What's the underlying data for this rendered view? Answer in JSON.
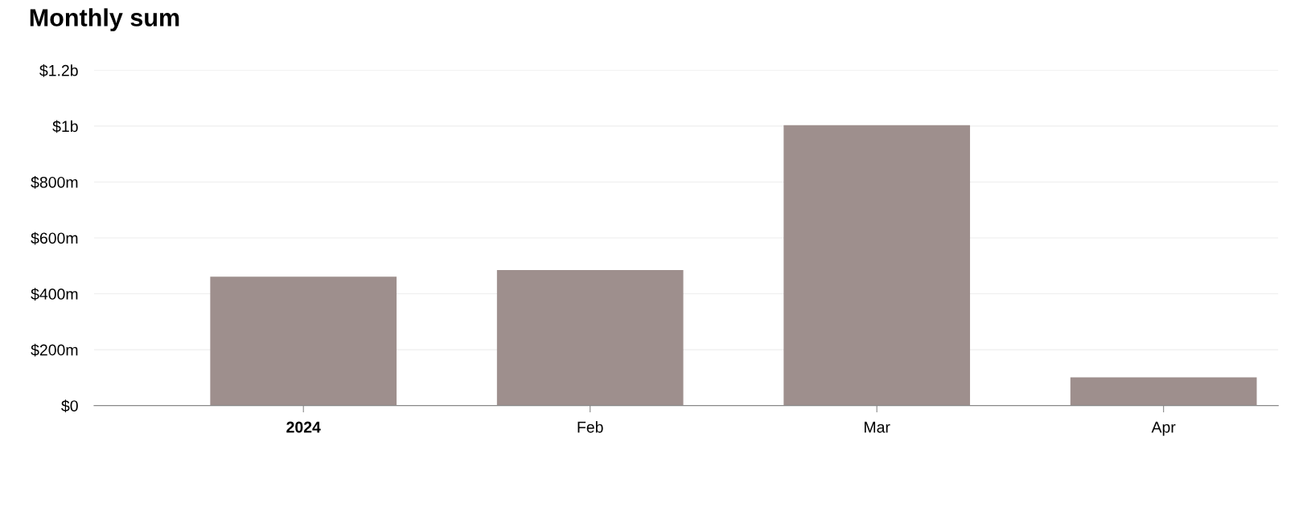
{
  "chart_data": {
    "type": "bar",
    "title": "Monthly sum",
    "categories": [
      "2024",
      "Feb",
      "Mar",
      "Apr"
    ],
    "values": [
      461000000,
      485000000,
      1003000000,
      101000000
    ],
    "color": "#9e8f8d",
    "ylim": [
      0,
      1200000000
    ],
    "yticks": [
      {
        "value": 0,
        "label": "$0"
      },
      {
        "value": 200000000,
        "label": "$200m"
      },
      {
        "value": 400000000,
        "label": "$400m"
      },
      {
        "value": 600000000,
        "label": "$600m"
      },
      {
        "value": 800000000,
        "label": "$800m"
      },
      {
        "value": 1000000000,
        "label": "$1b"
      },
      {
        "value": 1200000000,
        "label": "$1.2b"
      }
    ],
    "grid": "y"
  }
}
